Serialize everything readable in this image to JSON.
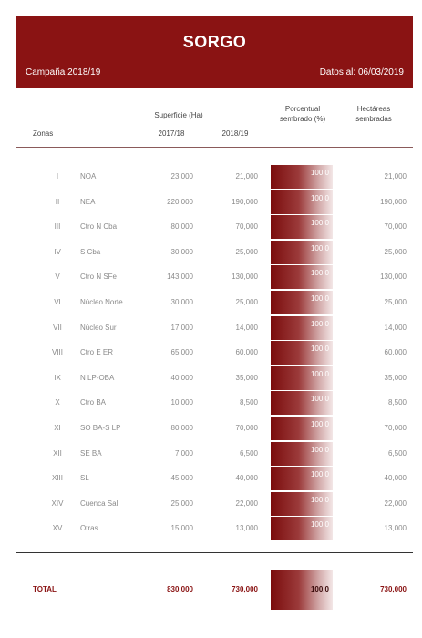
{
  "header": {
    "title": "SORGO",
    "campaign": "Campaña 2018/19",
    "date": "Datos al: 06/03/2019"
  },
  "columns": {
    "zonas": "Zonas",
    "superficie": "Superficie (Ha)",
    "y1": "2017/18",
    "y2": "2018/19",
    "porcentual": "Porcentual sembrado (%)",
    "hectareas": "Hectáreas sembradas"
  },
  "rows": [
    {
      "num": "I",
      "zone": "NOA",
      "a": "23,000",
      "b": "21,000",
      "pct": "100.0",
      "h": "21,000"
    },
    {
      "num": "II",
      "zone": "NEA",
      "a": "220,000",
      "b": "190,000",
      "pct": "100.0",
      "h": "190,000"
    },
    {
      "num": "III",
      "zone": "Ctro N Cba",
      "a": "80,000",
      "b": "70,000",
      "pct": "100.0",
      "h": "70,000"
    },
    {
      "num": "IV",
      "zone": "S Cba",
      "a": "30,000",
      "b": "25,000",
      "pct": "100.0",
      "h": "25,000"
    },
    {
      "num": "V",
      "zone": "Ctro N SFe",
      "a": "143,000",
      "b": "130,000",
      "pct": "100.0",
      "h": "130,000"
    },
    {
      "num": "VI",
      "zone": "Núcleo Norte",
      "a": "30,000",
      "b": "25,000",
      "pct": "100.0",
      "h": "25,000"
    },
    {
      "num": "VII",
      "zone": "Núcleo Sur",
      "a": "17,000",
      "b": "14,000",
      "pct": "100.0",
      "h": "14,000"
    },
    {
      "num": "VIII",
      "zone": "Ctro E ER",
      "a": "65,000",
      "b": "60,000",
      "pct": "100.0",
      "h": "60,000"
    },
    {
      "num": "IX",
      "zone": "N LP-OBA",
      "a": "40,000",
      "b": "35,000",
      "pct": "100.0",
      "h": "35,000"
    },
    {
      "num": "X",
      "zone": "Ctro BA",
      "a": "10,000",
      "b": "8,500",
      "pct": "100.0",
      "h": "8,500"
    },
    {
      "num": "XI",
      "zone": "SO BA-S LP",
      "a": "80,000",
      "b": "70,000",
      "pct": "100.0",
      "h": "70,000"
    },
    {
      "num": "XII",
      "zone": "SE BA",
      "a": "7,000",
      "b": "6,500",
      "pct": "100.0",
      "h": "6,500"
    },
    {
      "num": "XIII",
      "zone": "SL",
      "a": "45,000",
      "b": "40,000",
      "pct": "100.0",
      "h": "40,000"
    },
    {
      "num": "XIV",
      "zone": "Cuenca Sal",
      "a": "25,000",
      "b": "22,000",
      "pct": "100.0",
      "h": "22,000"
    },
    {
      "num": "XV",
      "zone": "Otras",
      "a": "15,000",
      "b": "13,000",
      "pct": "100.0",
      "h": "13,000"
    }
  ],
  "total": {
    "label": "TOTAL",
    "a": "830,000",
    "b": "730,000",
    "pct": "100.0",
    "h": "730,000"
  }
}
